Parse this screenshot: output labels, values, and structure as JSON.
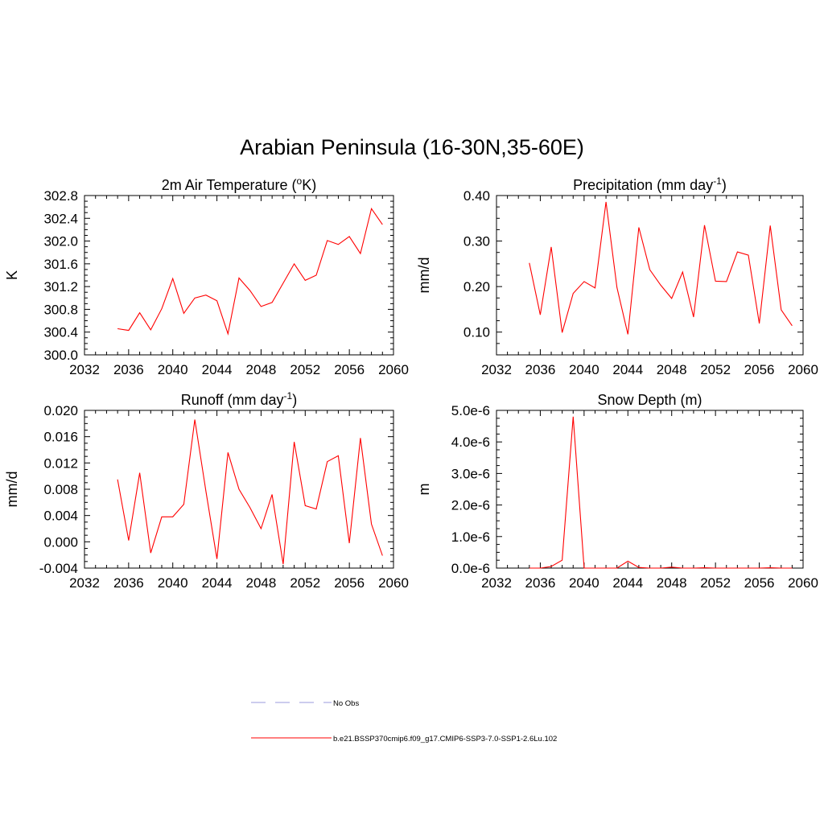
{
  "figure_title": "Arabian Peninsula (16-30N,35-60E)",
  "colors": {
    "model_line": "#ff0000",
    "obs_line": "#9999dd",
    "axis": "#000000"
  },
  "legend": {
    "items": [
      {
        "label": "No Obs",
        "style": "dashed",
        "color": "#9999dd"
      },
      {
        "label": "b.e21.BSSP370cmip6.f09_g17.CMIP6-SSP3-7.0-SSP1-2.6Lu.102",
        "style": "solid",
        "color": "#ff0000"
      }
    ]
  },
  "chart_data": [
    {
      "type": "line",
      "title": "2m Air Temperature (",
      "title_sup": "o",
      "title_after": "K)",
      "ylabel": "K",
      "xlim": [
        2032,
        2060
      ],
      "ylim": [
        300.0,
        302.8
      ],
      "xticks": [
        2032,
        2036,
        2040,
        2044,
        2048,
        2052,
        2056,
        2060
      ],
      "yticks": [
        300.0,
        300.4,
        300.8,
        301.2,
        301.6,
        302.0,
        302.4,
        302.8
      ],
      "ytick_labels": [
        "300.0",
        "300.4",
        "300.8",
        "301.2",
        "301.6",
        "302.0",
        "302.4",
        "302.8"
      ],
      "series": [
        {
          "x": [
            2035,
            2036,
            2037,
            2038,
            2039,
            2040,
            2041,
            2042,
            2043,
            2044,
            2045,
            2046,
            2047,
            2048,
            2049,
            2050,
            2051,
            2052,
            2053,
            2054,
            2055,
            2056,
            2057,
            2058,
            2059
          ],
          "values": [
            300.46,
            300.43,
            300.74,
            300.44,
            300.81,
            301.34,
            300.73,
            301.0,
            301.05,
            300.95,
            300.37,
            301.35,
            301.13,
            300.85,
            300.92,
            301.26,
            301.6,
            301.31,
            301.4,
            302.01,
            301.94,
            302.08,
            301.78,
            302.57,
            302.29
          ]
        }
      ]
    },
    {
      "type": "line",
      "title": "Precipitation (mm day",
      "title_sup": "-1",
      "title_after": ")",
      "ylabel": "mm/d",
      "xlim": [
        2032,
        2060
      ],
      "ylim": [
        0.05,
        0.4
      ],
      "xticks": [
        2032,
        2036,
        2040,
        2044,
        2048,
        2052,
        2056,
        2060
      ],
      "yticks": [
        0.1,
        0.2,
        0.3,
        0.4
      ],
      "ytick_labels": [
        "0.10",
        "0.20",
        "0.30",
        "0.40"
      ],
      "series": [
        {
          "x": [
            2035,
            2036,
            2037,
            2038,
            2039,
            2040,
            2041,
            2042,
            2043,
            2044,
            2045,
            2046,
            2047,
            2048,
            2049,
            2050,
            2051,
            2052,
            2053,
            2054,
            2055,
            2056,
            2057,
            2058,
            2059
          ],
          "values": [
            0.252,
            0.138,
            0.287,
            0.099,
            0.185,
            0.211,
            0.197,
            0.386,
            0.198,
            0.095,
            0.33,
            0.237,
            0.203,
            0.174,
            0.232,
            0.133,
            0.335,
            0.212,
            0.211,
            0.276,
            0.269,
            0.119,
            0.334,
            0.149,
            0.114
          ]
        }
      ]
    },
    {
      "type": "line",
      "title": "Runoff (mm day",
      "title_sup": "-1",
      "title_after": ")",
      "ylabel": "mm/d",
      "xlim": [
        2032,
        2060
      ],
      "ylim": [
        -0.004,
        0.02
      ],
      "xticks": [
        2032,
        2036,
        2040,
        2044,
        2048,
        2052,
        2056,
        2060
      ],
      "yticks": [
        -0.004,
        0.0,
        0.004,
        0.008,
        0.012,
        0.016,
        0.02
      ],
      "ytick_labels": [
        "-0.004",
        "0.000",
        "0.004",
        "0.008",
        "0.012",
        "0.016",
        "0.020"
      ],
      "series": [
        {
          "x": [
            2035,
            2036,
            2037,
            2038,
            2039,
            2040,
            2041,
            2042,
            2043,
            2044,
            2045,
            2046,
            2047,
            2048,
            2049,
            2050,
            2051,
            2052,
            2053,
            2054,
            2055,
            2056,
            2057,
            2058,
            2059
          ],
          "values": [
            0.0095,
            0.0002,
            0.0105,
            -0.0017,
            0.0038,
            0.0038,
            0.0057,
            0.0186,
            0.0077,
            -0.0026,
            0.0136,
            0.008,
            0.0052,
            0.002,
            0.0072,
            -0.0034,
            0.0152,
            0.0055,
            0.005,
            0.0122,
            0.0131,
            -0.0002,
            0.0158,
            0.0027,
            -0.0021
          ]
        }
      ]
    },
    {
      "type": "line",
      "title": "Snow Depth (m)",
      "title_sup": "",
      "title_after": "",
      "ylabel": "m",
      "xlim": [
        2032,
        2060
      ],
      "ylim": [
        0.0,
        5e-06
      ],
      "xticks": [
        2032,
        2036,
        2040,
        2044,
        2048,
        2052,
        2056,
        2060
      ],
      "yticks": [
        0.0,
        1e-06,
        2e-06,
        3e-06,
        4e-06,
        5e-06
      ],
      "ytick_labels": [
        "0.0e-6",
        "1.0e-6",
        "2.0e-6",
        "3.0e-6",
        "4.0e-6",
        "5.0e-6"
      ],
      "series": [
        {
          "x": [
            2035,
            2036,
            2037,
            2038,
            2039,
            2040,
            2041,
            2042,
            2043,
            2044,
            2045,
            2046,
            2047,
            2048,
            2049,
            2050,
            2051,
            2052,
            2053,
            2054,
            2055,
            2056,
            2057,
            2058,
            2059
          ],
          "values": [
            0.0,
            0.0,
            5e-08,
            2.5e-07,
            4.8e-06,
            0.0,
            0.0,
            0.0,
            0.0,
            2.2e-07,
            2e-08,
            0.0,
            0.0,
            3e-08,
            0.0,
            0.0,
            1e-08,
            0.0,
            0.0,
            0.0,
            0.0,
            0.0,
            1e-08,
            0.0,
            0.0
          ]
        }
      ]
    }
  ]
}
